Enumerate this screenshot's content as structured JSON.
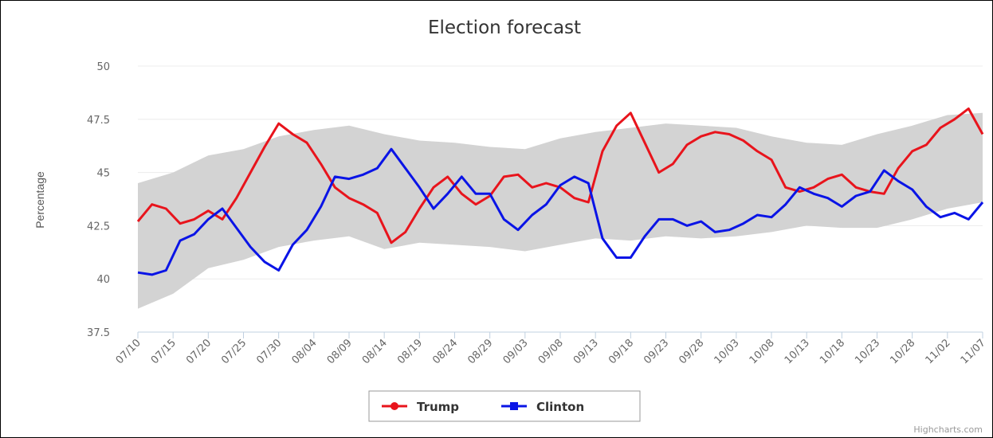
{
  "chart_data": {
    "type": "line",
    "title": "Election forecast",
    "ylabel": "Percentage",
    "ylim": [
      37.5,
      50
    ],
    "yticks": [
      "37.5",
      "40",
      "42.5",
      "45",
      "47.5",
      "50"
    ],
    "xticks": [
      "07/10",
      "07/15",
      "07/20",
      "07/25",
      "07/30",
      "08/04",
      "08/09",
      "08/14",
      "08/19",
      "08/24",
      "08/29",
      "09/03",
      "09/08",
      "09/13",
      "09/18",
      "09/23",
      "09/28",
      "10/03",
      "10/08",
      "10/13",
      "10/18",
      "10/23",
      "10/28",
      "11/02",
      "11/07"
    ],
    "x_start": "07/10",
    "x_end": "11/07",
    "legend_position": "bottom-center",
    "grid": true,
    "credits": "Highcharts.com",
    "colors": {
      "trump": "#e8141c",
      "clinton": "#0a14e6",
      "band": "#d3d3d3"
    },
    "series": [
      {
        "name": "Trump",
        "color": "#e8141c",
        "points": [
          [
            "07/10",
            42.7
          ],
          [
            "07/12",
            43.5
          ],
          [
            "07/14",
            43.3
          ],
          [
            "07/16",
            42.6
          ],
          [
            "07/18",
            42.8
          ],
          [
            "07/20",
            43.2
          ],
          [
            "07/22",
            42.8
          ],
          [
            "07/24",
            43.8
          ],
          [
            "07/26",
            45.0
          ],
          [
            "07/28",
            46.2
          ],
          [
            "07/30",
            47.3
          ],
          [
            "08/01",
            46.8
          ],
          [
            "08/03",
            46.4
          ],
          [
            "08/05",
            45.4
          ],
          [
            "08/07",
            44.3
          ],
          [
            "08/09",
            43.8
          ],
          [
            "08/11",
            43.5
          ],
          [
            "08/13",
            43.1
          ],
          [
            "08/15",
            41.7
          ],
          [
            "08/17",
            42.2
          ],
          [
            "08/19",
            43.3
          ],
          [
            "08/21",
            44.3
          ],
          [
            "08/23",
            44.8
          ],
          [
            "08/25",
            44.0
          ],
          [
            "08/27",
            43.5
          ],
          [
            "08/29",
            43.9
          ],
          [
            "08/31",
            44.8
          ],
          [
            "09/02",
            44.9
          ],
          [
            "09/04",
            44.3
          ],
          [
            "09/06",
            44.5
          ],
          [
            "09/08",
            44.3
          ],
          [
            "09/10",
            43.8
          ],
          [
            "09/12",
            43.6
          ],
          [
            "09/14",
            46.0
          ],
          [
            "09/16",
            47.2
          ],
          [
            "09/18",
            47.8
          ],
          [
            "09/20",
            46.4
          ],
          [
            "09/22",
            45.0
          ],
          [
            "09/24",
            45.4
          ],
          [
            "09/26",
            46.3
          ],
          [
            "09/28",
            46.7
          ],
          [
            "09/30",
            46.9
          ],
          [
            "10/02",
            46.8
          ],
          [
            "10/04",
            46.5
          ],
          [
            "10/06",
            46.0
          ],
          [
            "10/08",
            45.6
          ],
          [
            "10/10",
            44.3
          ],
          [
            "10/12",
            44.1
          ],
          [
            "10/14",
            44.3
          ],
          [
            "10/16",
            44.7
          ],
          [
            "10/18",
            44.9
          ],
          [
            "10/20",
            44.3
          ],
          [
            "10/22",
            44.1
          ],
          [
            "10/24",
            44.0
          ],
          [
            "10/26",
            45.2
          ],
          [
            "10/28",
            46.0
          ],
          [
            "10/30",
            46.3
          ],
          [
            "11/01",
            47.1
          ],
          [
            "11/03",
            47.5
          ],
          [
            "11/05",
            48.0
          ],
          [
            "11/07",
            46.8
          ]
        ]
      },
      {
        "name": "Clinton",
        "color": "#0a14e6",
        "points": [
          [
            "07/10",
            40.3
          ],
          [
            "07/12",
            40.2
          ],
          [
            "07/14",
            40.4
          ],
          [
            "07/16",
            41.8
          ],
          [
            "07/18",
            42.1
          ],
          [
            "07/20",
            42.8
          ],
          [
            "07/22",
            43.3
          ],
          [
            "07/24",
            42.4
          ],
          [
            "07/26",
            41.5
          ],
          [
            "07/28",
            40.8
          ],
          [
            "07/30",
            40.4
          ],
          [
            "08/01",
            41.6
          ],
          [
            "08/03",
            42.3
          ],
          [
            "08/05",
            43.4
          ],
          [
            "08/07",
            44.8
          ],
          [
            "08/09",
            44.7
          ],
          [
            "08/11",
            44.9
          ],
          [
            "08/13",
            45.2
          ],
          [
            "08/15",
            46.1
          ],
          [
            "08/17",
            45.2
          ],
          [
            "08/19",
            44.3
          ],
          [
            "08/21",
            43.3
          ],
          [
            "08/23",
            44.0
          ],
          [
            "08/25",
            44.8
          ],
          [
            "08/27",
            44.0
          ],
          [
            "08/29",
            44.0
          ],
          [
            "08/31",
            42.8
          ],
          [
            "09/02",
            42.3
          ],
          [
            "09/04",
            43.0
          ],
          [
            "09/06",
            43.5
          ],
          [
            "09/08",
            44.4
          ],
          [
            "09/10",
            44.8
          ],
          [
            "09/12",
            44.5
          ],
          [
            "09/14",
            41.9
          ],
          [
            "09/16",
            41.0
          ],
          [
            "09/18",
            41.0
          ],
          [
            "09/20",
            42.0
          ],
          [
            "09/22",
            42.8
          ],
          [
            "09/24",
            42.8
          ],
          [
            "09/26",
            42.5
          ],
          [
            "09/28",
            42.7
          ],
          [
            "09/30",
            42.2
          ],
          [
            "10/02",
            42.3
          ],
          [
            "10/04",
            42.6
          ],
          [
            "10/06",
            43.0
          ],
          [
            "10/08",
            42.9
          ],
          [
            "10/10",
            43.5
          ],
          [
            "10/12",
            44.3
          ],
          [
            "10/14",
            44.0
          ],
          [
            "10/16",
            43.8
          ],
          [
            "10/18",
            43.4
          ],
          [
            "10/20",
            43.9
          ],
          [
            "10/22",
            44.1
          ],
          [
            "10/24",
            45.1
          ],
          [
            "10/26",
            44.6
          ],
          [
            "10/28",
            44.2
          ],
          [
            "10/30",
            43.4
          ],
          [
            "11/01",
            42.9
          ],
          [
            "11/03",
            43.1
          ],
          [
            "11/05",
            42.8
          ],
          [
            "11/07",
            43.6
          ]
        ]
      }
    ],
    "band": {
      "points": [
        [
          "07/10",
          38.6,
          44.5
        ],
        [
          "07/15",
          39.3,
          45.0
        ],
        [
          "07/20",
          40.5,
          45.8
        ],
        [
          "07/25",
          40.9,
          46.1
        ],
        [
          "07/30",
          41.5,
          46.7
        ],
        [
          "08/04",
          41.8,
          47.0
        ],
        [
          "08/09",
          42.0,
          47.2
        ],
        [
          "08/14",
          41.4,
          46.8
        ],
        [
          "08/19",
          41.7,
          46.5
        ],
        [
          "08/24",
          41.6,
          46.4
        ],
        [
          "08/29",
          41.5,
          46.2
        ],
        [
          "09/03",
          41.3,
          46.1
        ],
        [
          "09/08",
          41.6,
          46.6
        ],
        [
          "09/13",
          41.9,
          46.9
        ],
        [
          "09/18",
          41.8,
          47.1
        ],
        [
          "09/23",
          42.0,
          47.3
        ],
        [
          "09/28",
          41.9,
          47.2
        ],
        [
          "10/03",
          42.0,
          47.1
        ],
        [
          "10/08",
          42.2,
          46.7
        ],
        [
          "10/13",
          42.5,
          46.4
        ],
        [
          "10/18",
          42.4,
          46.3
        ],
        [
          "10/23",
          42.4,
          46.8
        ],
        [
          "10/28",
          42.8,
          47.2
        ],
        [
          "11/02",
          43.3,
          47.7
        ],
        [
          "11/07",
          43.6,
          47.8
        ]
      ]
    }
  }
}
